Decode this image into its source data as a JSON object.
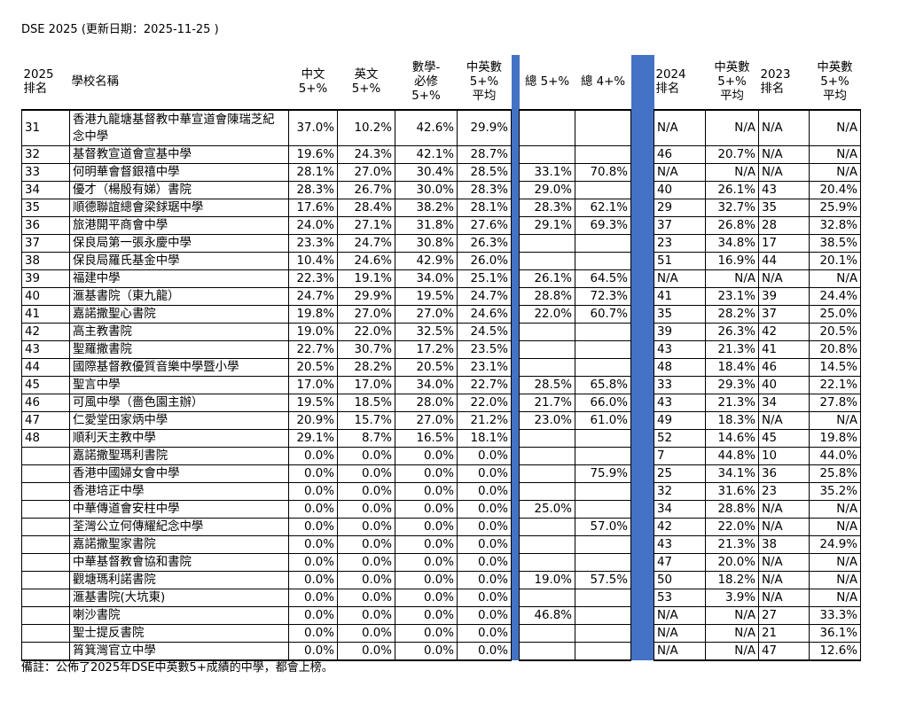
{
  "title": "DSE 2025 (更新日期：2025-11-25 )",
  "note": "備註：公佈了2025年DSE中英數5+成績的中學，都會上榜。",
  "accent_color": "#4472c4",
  "headers": {
    "rank2025": [
      "2025",
      "排名"
    ],
    "school": "學校名稱",
    "chinese": [
      "中文",
      "5+%"
    ],
    "english": [
      "英文",
      "5+%"
    ],
    "math": [
      "數學-",
      "必修",
      "5+%"
    ],
    "avg": [
      "中英數",
      "5+%",
      "平均"
    ],
    "total5": "總 5+%",
    "total4": "總 4+%",
    "rank2024": [
      "2024",
      "排名"
    ],
    "avg2024": [
      "中英數",
      "5+%",
      "平均"
    ],
    "rank2023": [
      "2023",
      "排名"
    ],
    "avg2023": [
      "中英數",
      "5+%",
      "平均"
    ]
  },
  "rows": [
    [
      "31",
      "香港九龍塘基督教中華宣道會陳瑞芝紀念中學",
      "37.0%",
      "10.2%",
      "42.6%",
      "29.9%",
      "",
      "",
      "N/A",
      "N/A",
      "N/A",
      "N/A"
    ],
    [
      "32",
      "基督教宣道會宣基中學",
      "19.6%",
      "24.3%",
      "42.1%",
      "28.7%",
      "",
      "",
      "46",
      "20.7%",
      "N/A",
      "N/A"
    ],
    [
      "33",
      "何明華會督銀禧中學",
      "28.1%",
      "27.0%",
      "30.4%",
      "28.5%",
      "33.1%",
      "70.8%",
      "N/A",
      "N/A",
      "N/A",
      "N/A"
    ],
    [
      "34",
      "優才（楊殷有娣）書院",
      "28.3%",
      "26.7%",
      "30.0%",
      "28.3%",
      "29.0%",
      "",
      "40",
      "26.1%",
      "43",
      "20.4%"
    ],
    [
      "35",
      "順德聯誼總會梁銶琚中學",
      "17.6%",
      "28.4%",
      "38.2%",
      "28.1%",
      "28.3%",
      "62.1%",
      "29",
      "32.7%",
      "35",
      "25.9%"
    ],
    [
      "36",
      "旅港開平商會中學",
      "24.0%",
      "27.1%",
      "31.8%",
      "27.6%",
      "29.1%",
      "69.3%",
      "37",
      "26.8%",
      "28",
      "32.8%"
    ],
    [
      "37",
      "保良局第一張永慶中學",
      "23.3%",
      "24.7%",
      "30.8%",
      "26.3%",
      "",
      "",
      "23",
      "34.8%",
      "17",
      "38.5%"
    ],
    [
      "38",
      "保良局羅氏基金中學",
      "10.4%",
      "24.6%",
      "42.9%",
      "26.0%",
      "",
      "",
      "51",
      "16.9%",
      "44",
      "20.1%"
    ],
    [
      "39",
      "福建中學",
      "22.3%",
      "19.1%",
      "34.0%",
      "25.1%",
      "26.1%",
      "64.5%",
      "N/A",
      "N/A",
      "N/A",
      "N/A"
    ],
    [
      "40",
      "滙基書院（東九龍）",
      "24.7%",
      "29.9%",
      "19.5%",
      "24.7%",
      "28.8%",
      "72.3%",
      "41",
      "23.1%",
      "39",
      "24.4%"
    ],
    [
      "41",
      "嘉諾撒聖心書院",
      "19.8%",
      "27.0%",
      "27.0%",
      "24.6%",
      "22.0%",
      "60.7%",
      "35",
      "28.2%",
      "37",
      "25.0%"
    ],
    [
      "42",
      "高主教書院",
      "19.0%",
      "22.0%",
      "32.5%",
      "24.5%",
      "",
      "",
      "39",
      "26.3%",
      "42",
      "20.5%"
    ],
    [
      "43",
      "聖羅撒書院",
      "22.7%",
      "30.7%",
      "17.2%",
      "23.5%",
      "",
      "",
      "43",
      "21.3%",
      "41",
      "20.8%"
    ],
    [
      "44",
      "國際基督教優質音樂中學暨小學",
      "20.5%",
      "28.2%",
      "20.5%",
      "23.1%",
      "",
      "",
      "48",
      "18.4%",
      "46",
      "14.5%"
    ],
    [
      "45",
      "聖言中學",
      "17.0%",
      "17.0%",
      "34.0%",
      "22.7%",
      "28.5%",
      "65.8%",
      "33",
      "29.3%",
      "40",
      "22.1%"
    ],
    [
      "46",
      "可風中學（嗇色園主辦）",
      "19.5%",
      "18.5%",
      "28.0%",
      "22.0%",
      "21.7%",
      "66.0%",
      "43",
      "21.3%",
      "34",
      "27.8%"
    ],
    [
      "47",
      "仁愛堂田家炳中學",
      "20.9%",
      "15.7%",
      "27.0%",
      "21.2%",
      "23.0%",
      "61.0%",
      "49",
      "18.3%",
      "N/A",
      "N/A"
    ],
    [
      "48",
      "順利天主教中學",
      "29.1%",
      "8.7%",
      "16.5%",
      "18.1%",
      "",
      "",
      "52",
      "14.6%",
      "45",
      "19.8%"
    ],
    [
      "",
      "嘉諾撒聖瑪利書院",
      "0.0%",
      "0.0%",
      "0.0%",
      "0.0%",
      "",
      "",
      "7",
      "44.8%",
      "10",
      "44.0%"
    ],
    [
      "",
      "香港中國婦女會中學",
      "0.0%",
      "0.0%",
      "0.0%",
      "0.0%",
      "",
      "75.9%",
      "25",
      "34.1%",
      "36",
      "25.8%"
    ],
    [
      "",
      "香港培正中學",
      "0.0%",
      "0.0%",
      "0.0%",
      "0.0%",
      "",
      "",
      "32",
      "31.6%",
      "23",
      "35.2%"
    ],
    [
      "",
      "中華傳道會安柱中學",
      "0.0%",
      "0.0%",
      "0.0%",
      "0.0%",
      "25.0%",
      "",
      "34",
      "28.8%",
      "N/A",
      "N/A"
    ],
    [
      "",
      "荃灣公立何傳耀紀念中學",
      "0.0%",
      "0.0%",
      "0.0%",
      "0.0%",
      "",
      "57.0%",
      "42",
      "22.0%",
      "N/A",
      "N/A"
    ],
    [
      "",
      "嘉諾撒聖家書院",
      "0.0%",
      "0.0%",
      "0.0%",
      "0.0%",
      "",
      "",
      "43",
      "21.3%",
      "38",
      "24.9%"
    ],
    [
      "",
      "中華基督教會協和書院",
      "0.0%",
      "0.0%",
      "0.0%",
      "0.0%",
      "",
      "",
      "47",
      "20.0%",
      "N/A",
      "N/A"
    ],
    [
      "",
      "觀塘瑪利諾書院",
      "0.0%",
      "0.0%",
      "0.0%",
      "0.0%",
      "19.0%",
      "57.5%",
      "50",
      "18.2%",
      "N/A",
      "N/A"
    ],
    [
      "",
      "滙基書院(大坑東)",
      "0.0%",
      "0.0%",
      "0.0%",
      "0.0%",
      "",
      "",
      "53",
      "3.9%",
      "N/A",
      "N/A"
    ],
    [
      "",
      "喇沙書院",
      "0.0%",
      "0.0%",
      "0.0%",
      "0.0%",
      "46.8%",
      "",
      "N/A",
      "N/A",
      "27",
      "33.3%"
    ],
    [
      "",
      "聖士提反書院",
      "0.0%",
      "0.0%",
      "0.0%",
      "0.0%",
      "",
      "",
      "N/A",
      "N/A",
      "21",
      "36.1%"
    ],
    [
      "",
      "筲箕灣官立中學",
      "0.0%",
      "0.0%",
      "0.0%",
      "0.0%",
      "",
      "",
      "N/A",
      "N/A",
      "47",
      "12.6%"
    ]
  ]
}
